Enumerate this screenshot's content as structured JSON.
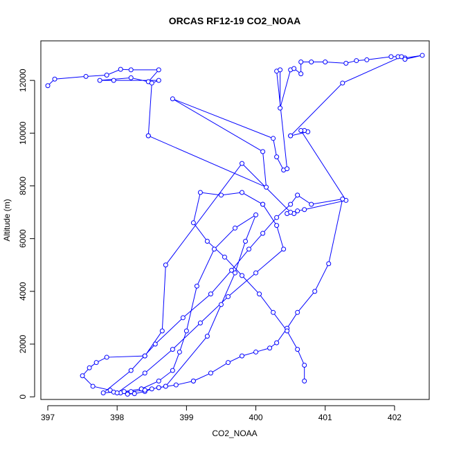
{
  "chart_data": {
    "type": "line",
    "title": "ORCAS RF12-19 CO2_NOAA",
    "xlabel": "CO2_NOAA",
    "ylabel": "Altitude (m)",
    "xlim": [
      396.9,
      402.5
    ],
    "ylim": [
      -100,
      13500
    ],
    "xticks": [
      397,
      398,
      399,
      400,
      401,
      402
    ],
    "yticks": [
      0,
      2000,
      4000,
      6000,
      8000,
      10000,
      12000
    ],
    "grid": false,
    "legend": "none",
    "line_color": "#0000ff",
    "marker": "open-circle",
    "series": [
      {
        "x": [
          397.0,
          397.1,
          397.55,
          397.85,
          398.05,
          398.2,
          398.6,
          398.45,
          398.2,
          397.75,
          397.95,
          398.6,
          398.5,
          398.45
        ],
        "y": [
          11800,
          12050,
          12150,
          12200,
          12420,
          12400,
          12400,
          11950,
          12100,
          12000,
          12000,
          12000,
          11900,
          9900
        ]
      },
      {
        "x": [
          398.45,
          400.15,
          400.1,
          398.8,
          400.25,
          400.3,
          400.4,
          400.45,
          400.3,
          400.35,
          400.35,
          400.5,
          400.55,
          400.65
        ],
        "y": [
          9900,
          7950,
          9300,
          11300,
          9800,
          9100,
          8600,
          8650,
          12350,
          12400,
          10950,
          12400,
          12450,
          12250
        ]
      },
      {
        "x": [
          400.65,
          400.8,
          401.0,
          401.3,
          401.45,
          401.6,
          401.95,
          402.05,
          402.15,
          402.4,
          402.15,
          402.1,
          401.25,
          400.5
        ],
        "y": [
          12700,
          12700,
          12700,
          12650,
          12750,
          12780,
          12900,
          12900,
          12850,
          12950,
          12800,
          12900,
          11900,
          9900
        ]
      },
      {
        "x": [
          400.5,
          400.75,
          400.7,
          400.65,
          401.3,
          400.7,
          400.6,
          400.55,
          400.45,
          400.5,
          399.8,
          398.7,
          398.65,
          398.4
        ],
        "y": [
          9900,
          10050,
          10100,
          10100,
          7450,
          7100,
          7050,
          6950,
          6950,
          7000,
          8850,
          5000,
          2500,
          1550
        ]
      },
      {
        "x": [
          398.4,
          397.85,
          397.7,
          397.6,
          397.5,
          397.65,
          397.9,
          398.05,
          398.15,
          398.25,
          398.4,
          398.5,
          398.6,
          398.7
        ],
        "y": [
          1550,
          1500,
          1300,
          1100,
          800,
          400,
          250,
          150,
          100,
          120,
          200,
          300,
          350,
          400
        ]
      },
      {
        "x": [
          398.7,
          399.3,
          399.5,
          399.7,
          399.85,
          400.0,
          399.7,
          399.4,
          399.15,
          399.0,
          398.9,
          398.8,
          398.6,
          398.35
        ],
        "y": [
          400,
          2300,
          3500,
          4700,
          5900,
          6900,
          6400,
          5600,
          4200,
          2500,
          1700,
          1000,
          600,
          300
        ]
      },
      {
        "x": [
          398.35,
          398.1,
          397.95,
          397.8,
          398.2,
          398.55,
          398.95,
          399.35,
          399.65,
          399.9,
          400.1,
          400.3,
          400.5,
          400.6
        ],
        "y": [
          300,
          200,
          180,
          150,
          1000,
          2000,
          3000,
          3900,
          4800,
          5600,
          6200,
          6800,
          7300,
          7650
        ]
      },
      {
        "x": [
          400.6,
          400.8,
          401.25,
          401.05,
          400.85,
          400.6,
          400.45,
          400.3,
          400.2,
          400.0,
          399.8,
          399.6,
          399.35,
          399.1
        ],
        "y": [
          7650,
          7300,
          7500,
          5050,
          4000,
          3200,
          2600,
          2050,
          1850,
          1700,
          1550,
          1300,
          900,
          600
        ]
      },
      {
        "x": [
          399.1,
          398.85,
          398.6,
          398.4,
          398.2,
          398.0,
          398.4,
          398.8,
          399.2,
          399.6,
          400.0,
          400.4,
          400.3,
          400.1
        ],
        "y": [
          600,
          450,
          350,
          250,
          200,
          150,
          900,
          1800,
          2800,
          3800,
          4700,
          5600,
          6500,
          7300
        ]
      },
      {
        "x": [
          400.1,
          399.8,
          399.5,
          399.2,
          399.1,
          399.3,
          399.55,
          399.8,
          400.05,
          400.25,
          400.45,
          400.6,
          400.7,
          400.7
        ],
        "y": [
          7300,
          7750,
          7650,
          7750,
          6600,
          5900,
          5300,
          4600,
          3900,
          3200,
          2500,
          1800,
          1200,
          600
        ]
      }
    ]
  }
}
